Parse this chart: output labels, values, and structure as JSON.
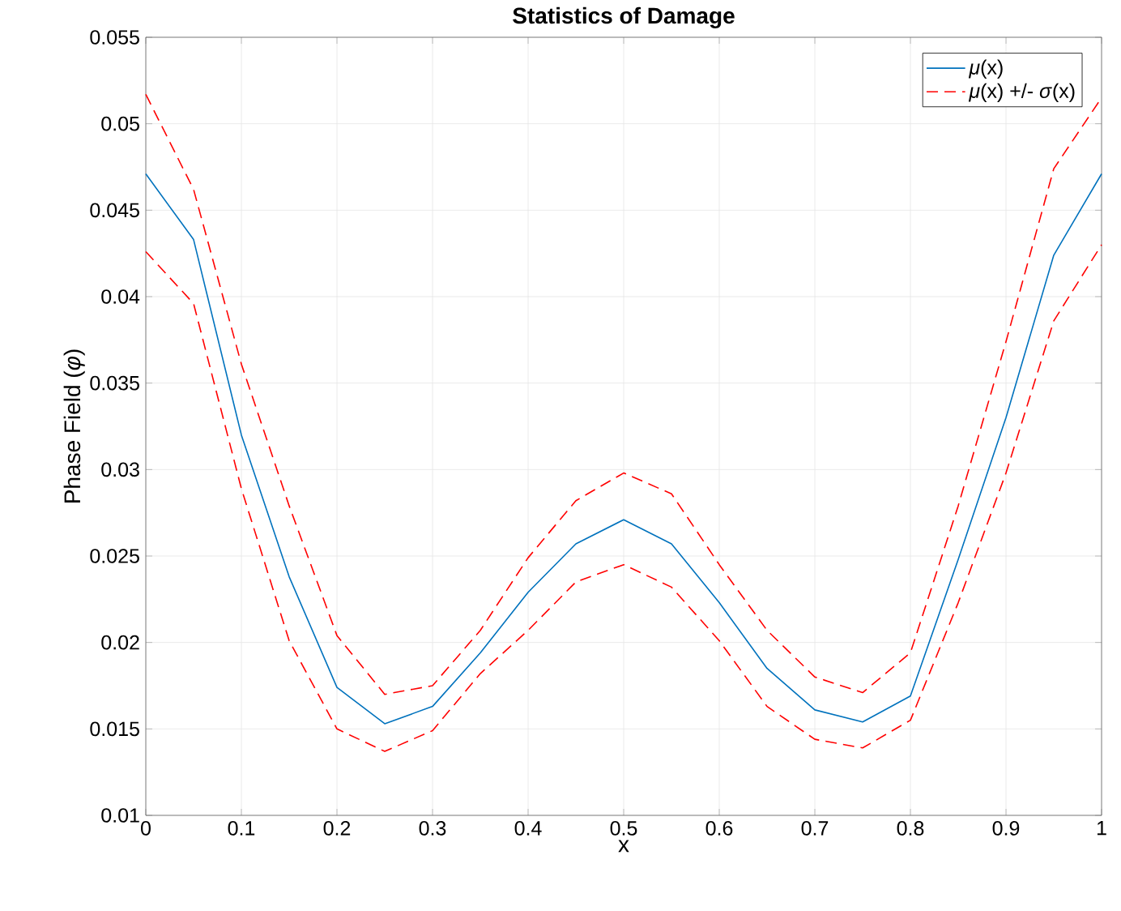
{
  "chart_data": {
    "type": "line",
    "title": "Statistics of Damage",
    "xlabel": "x",
    "ylabel": "Phase Field (*φ*)",
    "x": [
      0,
      0.05,
      0.1,
      0.15,
      0.2,
      0.25,
      0.3,
      0.35,
      0.4,
      0.45,
      0.5,
      0.55,
      0.6,
      0.65,
      0.7,
      0.75,
      0.8,
      0.85,
      0.9,
      0.95,
      1
    ],
    "series": [
      {
        "name": "*μ*(x)",
        "color": "#0072bd",
        "line_style": "solid",
        "values": [
          0.0471,
          0.0433,
          0.032,
          0.0238,
          0.0174,
          0.0153,
          0.0163,
          0.0194,
          0.0229,
          0.0257,
          0.0271,
          0.0257,
          0.0223,
          0.0185,
          0.0161,
          0.0154,
          0.0169,
          0.0248,
          0.033,
          0.0424,
          0.0471
        ]
      },
      {
        "name": "*μ*(x) +/- *σ*(x)",
        "color": "#ff0000",
        "line_style": "dashed",
        "values": [
          0.0517,
          0.0462,
          0.0361,
          0.0279,
          0.0204,
          0.017,
          0.0175,
          0.0207,
          0.0249,
          0.0282,
          0.0298,
          0.0286,
          0.0245,
          0.0207,
          0.018,
          0.0171,
          0.0194,
          0.0279,
          0.0374,
          0.0474,
          0.0515
        ]
      },
      {
        "color": "#ff0000",
        "line_style": "dashed",
        "values": [
          0.0426,
          0.0396,
          0.0289,
          0.0201,
          0.015,
          0.0137,
          0.0149,
          0.0182,
          0.0207,
          0.0235,
          0.0245,
          0.0232,
          0.0201,
          0.0163,
          0.0144,
          0.0139,
          0.0155,
          0.0223,
          0.0298,
          0.0386,
          0.043
        ]
      }
    ],
    "xlim": [
      0,
      1
    ],
    "ylim": [
      0.01,
      0.055
    ],
    "xticks": [
      0,
      0.1,
      0.2,
      0.3,
      0.4,
      0.5,
      0.6,
      0.7,
      0.8,
      0.9,
      1
    ],
    "yticks": [
      0.01,
      0.015,
      0.02,
      0.025,
      0.03,
      0.035,
      0.04,
      0.045,
      0.05,
      0.055
    ],
    "grid": true,
    "legend": "top right"
  }
}
